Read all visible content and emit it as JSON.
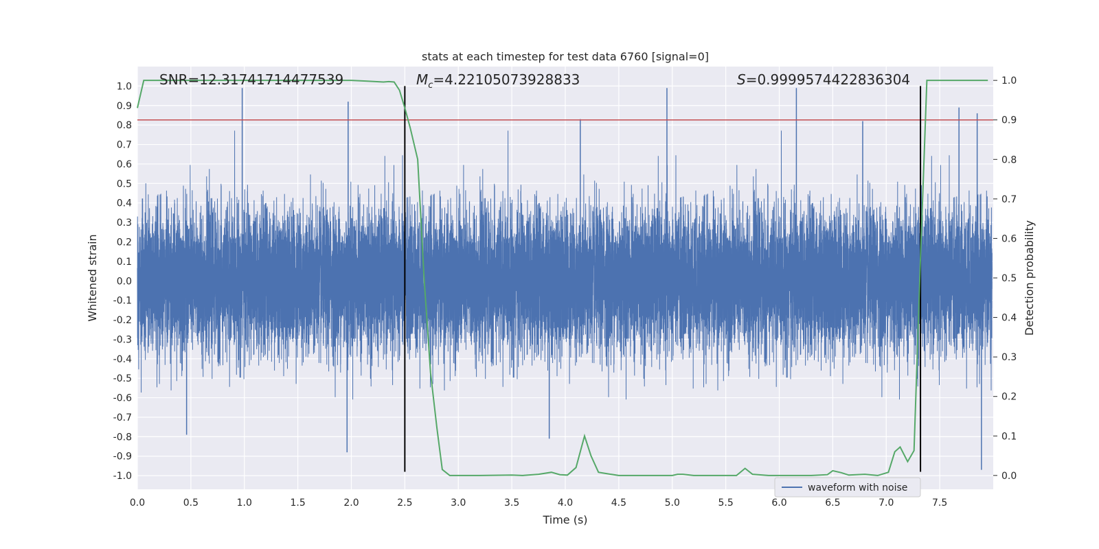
{
  "chart_data": {
    "type": "line",
    "title": "stats at each timestep for test data 6760 [signal=0]",
    "xlabel": "Time (s)",
    "ylabel": "Whitened strain",
    "ylabel_right": "Detection probability",
    "xlim": [
      0.0,
      8.0
    ],
    "ylim": [
      -1.07,
      1.1
    ],
    "ylim_right": [
      -0.035,
      1.035
    ],
    "x_ticks": [
      0.0,
      0.5,
      1.0,
      1.5,
      2.0,
      2.5,
      3.0,
      3.5,
      4.0,
      4.5,
      5.0,
      5.5,
      6.0,
      6.5,
      7.0,
      7.5
    ],
    "x_tick_labels": [
      "0.0",
      "0.5",
      "1.0",
      "1.5",
      "2.0",
      "2.5",
      "3.0",
      "3.5",
      "4.0",
      "4.5",
      "5.0",
      "5.5",
      "6.0",
      "6.5",
      "7.0",
      "7.5"
    ],
    "y_ticks": [
      1.0,
      0.9,
      0.8,
      0.7,
      0.6,
      0.5,
      0.4,
      0.3,
      0.2,
      0.1,
      0.0,
      -0.1,
      -0.2,
      -0.3,
      -0.4,
      -0.5,
      -0.6,
      -0.7,
      -0.8,
      -0.9,
      -1.0
    ],
    "y_tick_labels": [
      "1.0",
      "0.9",
      "0.8",
      "0.7",
      "0.6",
      "0.5",
      "0.4",
      "0.3",
      "0.2",
      "0.1",
      "0.0",
      "-0.1",
      "-0.2",
      "-0.3",
      "-0.4",
      "-0.5",
      "-0.6",
      "-0.7",
      "-0.8",
      "-0.9",
      "-1.0"
    ],
    "y_right_ticks": [
      1.0,
      0.9,
      0.8,
      0.7,
      0.6,
      0.5,
      0.4,
      0.3,
      0.2,
      0.1,
      0.0
    ],
    "y_right_tick_labels": [
      "1.0",
      "0.9",
      "0.8",
      "0.7",
      "0.6",
      "0.5",
      "0.4",
      "0.3",
      "0.2",
      "0.1",
      "0.0"
    ],
    "grid": true,
    "annotations": {
      "snr_text": "SNR=12.31741714477539",
      "mc_symbol": "M",
      "mc_subscript": "c",
      "mc_value": "=4.22105073928833",
      "s_symbol": "S",
      "s_value": "=0.9999574422836304"
    },
    "threshold": {
      "value": 0.9,
      "axis": "right",
      "color": "#c44e52"
    },
    "vlines": [
      {
        "x": 2.5,
        "y_range": [
          -0.98,
          1.0
        ],
        "color": "#000000"
      },
      {
        "x": 7.32,
        "y_range": [
          -0.98,
          1.0
        ],
        "color": "#000000"
      }
    ],
    "series": [
      {
        "name": "waveform with noise",
        "axis": "left",
        "color": "#4c72b0",
        "sample_rate_hz": 2048,
        "x_start": 0.0,
        "x_end": 7.99,
        "noise_std": 0.18,
        "peaks": [
          {
            "x": 0.98,
            "y": 0.99
          },
          {
            "x": 1.97,
            "y": 0.92
          },
          {
            "x": 1.96,
            "y": -0.88
          },
          {
            "x": 0.46,
            "y": -0.79
          },
          {
            "x": 3.85,
            "y": -0.81
          },
          {
            "x": 4.14,
            "y": 0.83
          },
          {
            "x": 6.16,
            "y": 0.99
          },
          {
            "x": 6.78,
            "y": 0.82
          },
          {
            "x": 7.68,
            "y": 0.89
          },
          {
            "x": 7.89,
            "y": -0.97
          },
          {
            "x": 7.85,
            "y": 0.86
          },
          {
            "x": 4.95,
            "y": 0.99
          }
        ]
      },
      {
        "name": "detection probability",
        "axis": "right",
        "color": "#55a868",
        "x": [
          0.0,
          0.06,
          0.12,
          0.3,
          0.6,
          1.0,
          1.5,
          2.0,
          2.15,
          2.3,
          2.35,
          2.4,
          2.45,
          2.5,
          2.55,
          2.62,
          2.68,
          2.74,
          2.8,
          2.85,
          2.92,
          3.0,
          3.2,
          3.5,
          3.6,
          3.75,
          3.87,
          3.95,
          4.02,
          4.1,
          4.18,
          4.24,
          4.31,
          4.38,
          4.5,
          4.8,
          5.0,
          5.05,
          5.1,
          5.2,
          5.4,
          5.6,
          5.68,
          5.75,
          5.9,
          6.1,
          6.3,
          6.45,
          6.5,
          6.58,
          6.65,
          6.8,
          6.92,
          7.02,
          7.08,
          7.13,
          7.2,
          7.26,
          7.32,
          7.38,
          7.45,
          7.95
        ],
        "y": [
          0.93,
          1.0,
          1.0,
          1.0,
          1.0,
          1.0,
          1.0,
          1.0,
          0.998,
          0.996,
          0.997,
          0.996,
          0.975,
          0.93,
          0.88,
          0.8,
          0.5,
          0.26,
          0.12,
          0.015,
          0.0,
          0.0,
          0.0,
          0.001,
          0.0,
          0.003,
          0.008,
          0.002,
          0.001,
          0.02,
          0.1,
          0.05,
          0.008,
          0.005,
          0.0,
          0.0,
          0.0,
          0.003,
          0.003,
          0.0,
          0.0,
          0.0,
          0.018,
          0.003,
          0.0,
          0.0,
          0.0,
          0.002,
          0.012,
          0.007,
          0.001,
          0.003,
          0.0,
          0.008,
          0.06,
          0.072,
          0.035,
          0.063,
          0.55,
          1.0,
          1.0,
          1.0
        ]
      }
    ],
    "legend": {
      "position": "lower-center-right",
      "entries": [
        "waveform with noise"
      ]
    }
  }
}
